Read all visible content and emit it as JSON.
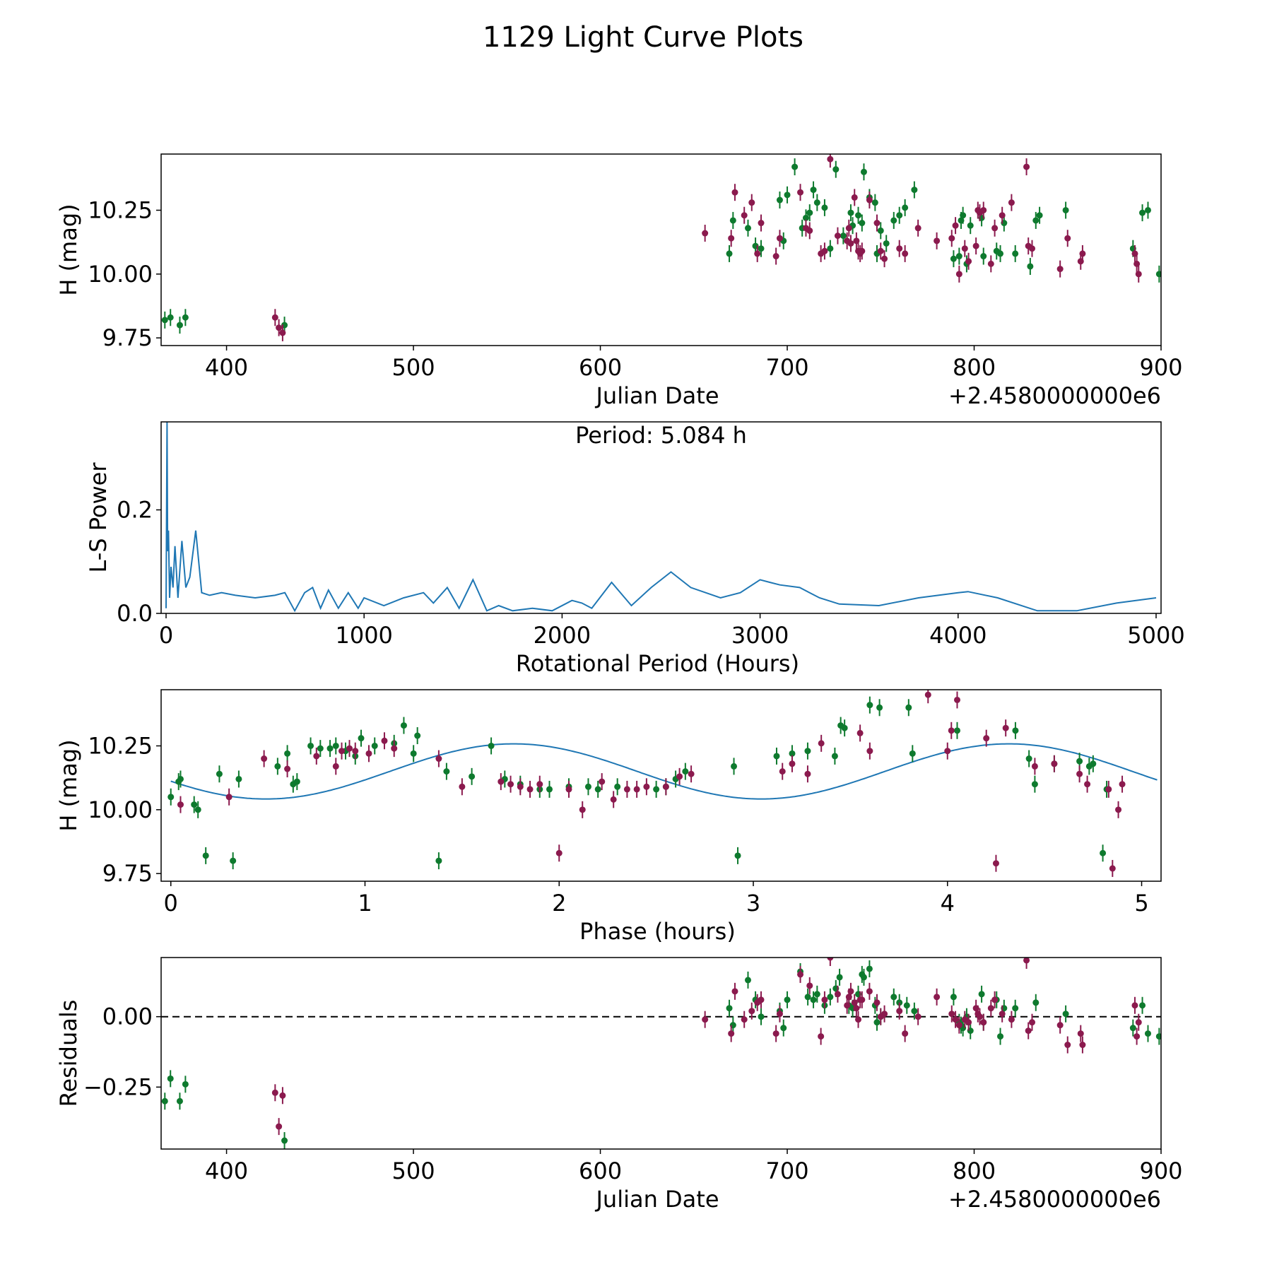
{
  "figure_title": "1129 Light Curve Plots",
  "colors": {
    "filter_a": "#8b1a4e",
    "filter_b": "#0e7a2e",
    "model": "#1f77b4",
    "axes": "#000000"
  },
  "chart_data": [
    {
      "type": "scatter",
      "xlabel": "Julian Date",
      "ylabel": "H (mag)",
      "x_offset_label": "+2.4580000000e6",
      "xlim": [
        365,
        900
      ],
      "ylim": [
        9.72,
        10.47
      ],
      "xticks": [
        400,
        500,
        600,
        700,
        800,
        900
      ],
      "yticks": [
        9.75,
        10.0,
        10.25
      ],
      "ytick_labels": [
        "9.75",
        "10.00",
        "10.25"
      ],
      "grid": false,
      "series": [
        {
          "color_key": "filter_b",
          "x": [
            367,
            370,
            375,
            378,
            431,
            669,
            671,
            679,
            683,
            686,
            696,
            698,
            700,
            704,
            708,
            710,
            712,
            714,
            716,
            720,
            723,
            726,
            730,
            734,
            735,
            738,
            740,
            741,
            744,
            747,
            748,
            750,
            753,
            757,
            760,
            763,
            768,
            789,
            792,
            793,
            794,
            796,
            798,
            804,
            805,
            812,
            814,
            816,
            822,
            830,
            833,
            835,
            849,
            885,
            890,
            893,
            899
          ],
          "y": [
            9.82,
            9.83,
            9.8,
            9.83,
            9.8,
            10.08,
            10.21,
            10.18,
            10.11,
            10.1,
            10.29,
            10.13,
            10.31,
            10.42,
            10.18,
            10.22,
            10.24,
            10.33,
            10.28,
            10.26,
            10.1,
            10.41,
            10.15,
            10.24,
            10.19,
            10.23,
            10.2,
            10.4,
            10.3,
            10.28,
            10.08,
            10.17,
            10.12,
            10.21,
            10.23,
            10.26,
            10.33,
            10.06,
            10.07,
            10.21,
            10.23,
            10.04,
            10.19,
            10.22,
            10.07,
            10.09,
            10.08,
            10.2,
            10.08,
            10.03,
            10.21,
            10.23,
            10.25,
            10.1,
            10.24,
            10.25,
            10.0
          ]
        },
        {
          "color_key": "filter_a",
          "x": [
            426,
            428,
            430,
            656,
            670,
            672,
            677,
            681,
            684,
            686,
            694,
            696,
            707,
            710,
            712,
            718,
            720,
            723,
            727,
            732,
            733,
            734,
            736,
            737,
            738,
            739,
            740,
            744,
            748,
            750,
            752,
            760,
            763,
            770,
            780,
            788,
            790,
            792,
            795,
            797,
            801,
            802,
            803,
            805,
            809,
            811,
            815,
            820,
            828,
            829,
            831,
            846,
            850,
            857,
            858,
            886,
            887,
            888
          ],
          "y": [
            9.83,
            9.79,
            9.77,
            10.16,
            10.14,
            10.32,
            10.23,
            10.28,
            10.08,
            10.2,
            10.07,
            10.14,
            10.32,
            10.18,
            10.17,
            10.08,
            10.09,
            10.45,
            10.15,
            10.13,
            10.18,
            10.12,
            10.3,
            10.13,
            10.09,
            10.08,
            10.09,
            10.29,
            10.2,
            10.09,
            10.06,
            10.1,
            10.08,
            10.18,
            10.13,
            10.14,
            10.19,
            10.0,
            10.1,
            10.05,
            10.11,
            10.25,
            10.24,
            10.25,
            10.04,
            10.18,
            10.23,
            10.28,
            10.42,
            10.11,
            10.1,
            10.02,
            10.14,
            10.05,
            10.08,
            10.08,
            10.04,
            10.0
          ]
        }
      ]
    },
    {
      "type": "line",
      "xlabel": "Rotational Period (Hours)",
      "ylabel": "L-S Power",
      "annotation": "Period: 5.084 h",
      "xlim": [
        -25,
        5025
      ],
      "ylim": [
        0,
        0.37
      ],
      "xticks": [
        0,
        1000,
        2000,
        3000,
        4000,
        5000
      ],
      "yticks": [
        0.0,
        0.2
      ],
      "ytick_labels": [
        "0.0",
        "0.2"
      ],
      "grid": false,
      "series": [
        {
          "color_key": "model",
          "x": [
            0,
            5,
            8,
            12,
            18,
            25,
            35,
            45,
            60,
            80,
            100,
            120,
            150,
            180,
            220,
            280,
            350,
            450,
            550,
            600,
            650,
            700,
            740,
            780,
            820,
            870,
            920,
            970,
            1000,
            1100,
            1200,
            1300,
            1350,
            1420,
            1480,
            1550,
            1620,
            1680,
            1750,
            1850,
            1950,
            2050,
            2100,
            2150,
            2250,
            2350,
            2450,
            2550,
            2650,
            2800,
            2900,
            3000,
            3050,
            3100,
            3200,
            3300,
            3400,
            3600,
            3800,
            4000,
            4050,
            4200,
            4400,
            4600,
            4800,
            5000
          ],
          "y": [
            0.01,
            0.37,
            0.12,
            0.16,
            0.03,
            0.09,
            0.05,
            0.13,
            0.03,
            0.14,
            0.05,
            0.07,
            0.16,
            0.04,
            0.035,
            0.04,
            0.035,
            0.03,
            0.035,
            0.04,
            0.005,
            0.04,
            0.05,
            0.01,
            0.045,
            0.01,
            0.04,
            0.01,
            0.03,
            0.015,
            0.03,
            0.04,
            0.02,
            0.05,
            0.01,
            0.065,
            0.005,
            0.015,
            0.005,
            0.01,
            0.005,
            0.025,
            0.02,
            0.01,
            0.06,
            0.015,
            0.05,
            0.08,
            0.05,
            0.03,
            0.04,
            0.065,
            0.06,
            0.055,
            0.05,
            0.03,
            0.018,
            0.015,
            0.03,
            0.04,
            0.042,
            0.03,
            0.005,
            0.005,
            0.02,
            0.03
          ]
        }
      ]
    },
    {
      "type": "scatter",
      "xlabel": "Phase (hours)",
      "ylabel": "H (mag)",
      "xlim": [
        -0.05,
        5.1
      ],
      "ylim": [
        9.72,
        10.47
      ],
      "xticks": [
        0,
        1,
        2,
        3,
        4,
        5
      ],
      "yticks": [
        9.75,
        10.0,
        10.25
      ],
      "ytick_labels": [
        "9.75",
        "10.00",
        "10.25"
      ],
      "grid": false,
      "model": {
        "mean": 10.15,
        "amplitude": 0.108,
        "period": 2.55,
        "phase_shift": 0.49
      },
      "series": [
        {
          "color_key": "filter_b",
          "x": [
            0.0,
            0.04,
            0.05,
            0.12,
            0.14,
            0.18,
            0.25,
            0.32,
            0.35,
            0.55,
            0.6,
            0.63,
            0.65,
            0.72,
            0.77,
            0.82,
            0.85,
            0.9,
            0.95,
            0.98,
            1.05,
            1.15,
            1.2,
            1.25,
            1.27,
            1.38,
            1.42,
            1.55,
            1.65,
            1.72,
            1.8,
            1.9,
            1.95,
            2.05,
            2.15,
            2.2,
            2.3,
            2.5,
            2.55,
            2.6,
            2.65,
            2.9,
            2.92,
            3.12,
            3.2,
            3.28,
            3.42,
            3.45,
            3.47,
            3.6,
            3.65,
            3.8,
            3.82,
            4.05,
            4.35,
            4.42,
            4.45,
            4.55,
            4.68,
            4.73,
            4.75,
            4.8,
            4.82
          ],
          "y": [
            10.05,
            10.11,
            10.12,
            10.02,
            10.0,
            9.82,
            10.14,
            9.8,
            10.12,
            10.17,
            10.22,
            10.1,
            10.11,
            10.25,
            10.24,
            10.24,
            10.25,
            10.23,
            10.21,
            10.28,
            10.25,
            10.26,
            10.33,
            10.22,
            10.29,
            9.8,
            10.15,
            10.13,
            10.25,
            10.12,
            10.1,
            10.08,
            10.08,
            10.09,
            10.09,
            10.08,
            10.09,
            10.08,
            10.09,
            10.12,
            10.15,
            10.17,
            9.82,
            10.21,
            10.22,
            10.23,
            10.21,
            10.33,
            10.32,
            10.41,
            10.4,
            10.4,
            10.22,
            10.31,
            10.31,
            10.2,
            10.1,
            10.18,
            10.19,
            10.17,
            10.18,
            9.83,
            10.08
          ]
        },
        {
          "color_key": "filter_a",
          "x": [
            0.05,
            0.3,
            0.48,
            0.6,
            0.75,
            0.85,
            0.88,
            0.92,
            0.95,
            1.02,
            1.1,
            1.15,
            1.38,
            1.5,
            1.7,
            1.75,
            1.8,
            1.85,
            1.9,
            2.0,
            2.05,
            2.12,
            2.22,
            2.28,
            2.35,
            2.4,
            2.45,
            2.55,
            2.62,
            2.68,
            3.15,
            3.2,
            3.28,
            3.35,
            3.55,
            3.6,
            3.9,
            4.0,
            4.02,
            4.05,
            4.2,
            4.25,
            4.3,
            4.45,
            4.55,
            4.68,
            4.72,
            4.83,
            4.85,
            4.88,
            4.9
          ],
          "y": [
            10.02,
            10.05,
            10.2,
            10.16,
            10.21,
            10.17,
            10.23,
            10.24,
            10.23,
            10.22,
            10.27,
            10.24,
            10.2,
            10.09,
            10.11,
            10.1,
            10.09,
            10.08,
            10.1,
            9.83,
            10.08,
            10.0,
            10.11,
            10.04,
            10.08,
            10.08,
            10.09,
            10.09,
            10.13,
            10.14,
            10.15,
            10.18,
            10.14,
            10.26,
            10.3,
            10.23,
            10.45,
            10.23,
            10.31,
            10.43,
            10.28,
            9.79,
            10.32,
            10.17,
            10.18,
            10.14,
            10.1,
            10.08,
            9.77,
            10.0,
            10.1
          ]
        }
      ]
    },
    {
      "type": "scatter",
      "xlabel": "Julian Date",
      "ylabel": "Residuals",
      "x_offset_label": "+2.4580000000e6",
      "xlim": [
        365,
        900
      ],
      "ylim": [
        -0.47,
        0.21
      ],
      "xticks": [
        400,
        500,
        600,
        700,
        800,
        900
      ],
      "yticks": [
        -0.25,
        0.0
      ],
      "ytick_labels": [
        "−0.25",
        "0.00"
      ],
      "zero_line": true,
      "grid": false,
      "series": [
        {
          "color_key": "filter_b",
          "x": [
            367,
            370,
            375,
            378,
            431,
            669,
            671,
            679,
            683,
            686,
            696,
            698,
            700,
            707,
            711,
            714,
            716,
            720,
            723,
            726,
            728,
            733,
            735,
            738,
            740,
            741,
            744,
            747,
            748,
            750,
            757,
            760,
            764,
            768,
            789,
            792,
            793,
            794,
            796,
            798,
            804,
            805,
            812,
            814,
            816,
            822,
            833,
            849,
            885,
            890,
            893,
            899
          ],
          "y": [
            -0.3,
            -0.22,
            -0.3,
            -0.24,
            -0.44,
            0.03,
            -0.03,
            0.13,
            0.06,
            0.0,
            0.02,
            -0.04,
            0.06,
            0.16,
            0.07,
            0.06,
            0.08,
            0.04,
            0.07,
            0.1,
            0.14,
            0.04,
            0.03,
            0.08,
            0.15,
            0.14,
            0.17,
            0.04,
            -0.02,
            0.0,
            0.07,
            0.05,
            0.04,
            0.02,
            0.07,
            -0.02,
            -0.03,
            -0.04,
            0.0,
            -0.05,
            0.08,
            -0.02,
            0.06,
            -0.07,
            0.03,
            0.03,
            0.05,
            0.01,
            -0.04,
            0.04,
            -0.06,
            -0.07
          ]
        },
        {
          "color_key": "filter_a",
          "x": [
            426,
            428,
            430,
            656,
            670,
            672,
            677,
            681,
            684,
            686,
            694,
            696,
            707,
            712,
            718,
            720,
            723,
            727,
            732,
            733,
            734,
            736,
            737,
            738,
            739,
            740,
            744,
            748,
            750,
            752,
            760,
            763,
            770,
            780,
            788,
            790,
            792,
            795,
            797,
            801,
            802,
            803,
            805,
            809,
            811,
            815,
            820,
            828,
            829,
            831,
            846,
            850,
            857,
            858,
            886,
            887,
            888
          ],
          "y": [
            -0.27,
            -0.39,
            -0.28,
            -0.01,
            -0.06,
            0.09,
            -0.01,
            0.02,
            0.05,
            0.06,
            -0.06,
            0.01,
            0.15,
            0.11,
            -0.07,
            0.06,
            0.21,
            0.08,
            0.04,
            0.07,
            0.09,
            0.05,
            0.03,
            -0.01,
            0.06,
            0.06,
            0.09,
            0.05,
            0.0,
            0.01,
            0.02,
            -0.06,
            0.0,
            0.07,
            0.01,
            -0.01,
            -0.03,
            -0.01,
            -0.02,
            0.03,
            0.01,
            0.0,
            -0.02,
            0.03,
            0.06,
            0.01,
            -0.01,
            0.2,
            -0.05,
            -0.02,
            -0.03,
            -0.1,
            -0.06,
            -0.1,
            0.04,
            -0.07,
            -0.02
          ]
        }
      ]
    }
  ]
}
